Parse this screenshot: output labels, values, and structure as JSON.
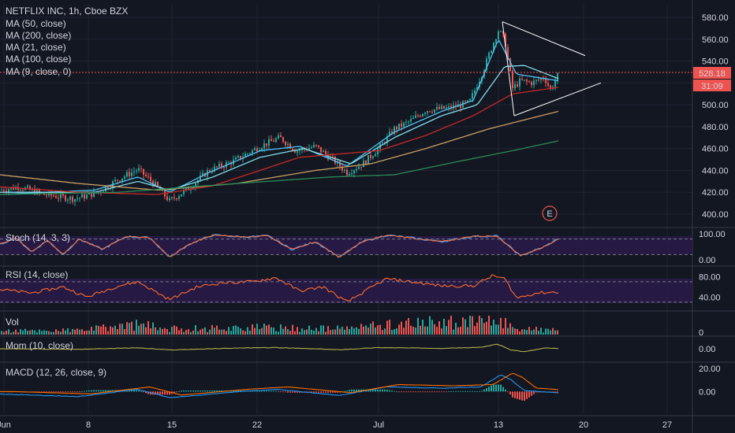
{
  "header": {
    "symbol_line": "NETFLIX INC, 1h, Cboe BZX",
    "indicators": [
      "MA (50, close)",
      "MA (200, close)",
      "MA (21, close)",
      "MA (100, close)",
      "MA (9, close, 0)"
    ]
  },
  "price_badges": {
    "last_price": "528.18",
    "countdown": "31:09"
  },
  "earnings_marker": "E",
  "colors": {
    "background": "#131722",
    "up": "#26a69a",
    "down": "#ef5350",
    "ma9": "#4fc3f7",
    "ma21": "#80deea",
    "ma50": "#c62828",
    "ma100": "#c8a064",
    "ma200": "#2e8b57",
    "badge": "#ef5350",
    "osc_fill": "#2a1a4a"
  },
  "chart_data": [
    {
      "type": "candlestick",
      "pane": "price",
      "ylim": [
        385,
        590
      ],
      "y_ticks": [
        "580.00",
        "560.00",
        "540.00",
        "520.00",
        "500.00",
        "480.00",
        "460.00",
        "440.00",
        "420.00",
        "400.00"
      ],
      "x_ticks": [
        "Jun",
        "8",
        "15",
        "22",
        "Jul",
        "13",
        "20",
        "27"
      ],
      "last_price": 528.18,
      "key_points": [
        {
          "x": 0,
          "close": 422
        },
        {
          "x": 25,
          "close": 425
        },
        {
          "x": 55,
          "close": 418
        },
        {
          "x": 95,
          "close": 414
        },
        {
          "x": 125,
          "close": 420
        },
        {
          "x": 150,
          "close": 432
        },
        {
          "x": 175,
          "close": 441
        },
        {
          "x": 195,
          "close": 428
        },
        {
          "x": 215,
          "close": 412
        },
        {
          "x": 240,
          "close": 424
        },
        {
          "x": 265,
          "close": 440
        },
        {
          "x": 295,
          "close": 448
        },
        {
          "x": 330,
          "close": 462
        },
        {
          "x": 355,
          "close": 470
        },
        {
          "x": 375,
          "close": 458
        },
        {
          "x": 400,
          "close": 462
        },
        {
          "x": 425,
          "close": 448
        },
        {
          "x": 440,
          "close": 438
        },
        {
          "x": 460,
          "close": 446
        },
        {
          "x": 480,
          "close": 460
        },
        {
          "x": 500,
          "close": 478
        },
        {
          "x": 520,
          "close": 485
        },
        {
          "x": 540,
          "close": 495
        },
        {
          "x": 570,
          "close": 497
        },
        {
          "x": 595,
          "close": 502
        },
        {
          "x": 612,
          "close": 530
        },
        {
          "x": 622,
          "close": 550
        },
        {
          "x": 632,
          "close": 568
        },
        {
          "x": 640,
          "close": 560
        },
        {
          "x": 650,
          "close": 515
        },
        {
          "x": 660,
          "close": 522
        },
        {
          "x": 675,
          "close": 520
        },
        {
          "x": 690,
          "close": 525
        },
        {
          "x": 698,
          "close": 514
        },
        {
          "x": 708,
          "close": 528
        }
      ],
      "moving_averages": [
        {
          "name": "MA (9, close, 0)",
          "key_points": [
            {
              "x": 0,
              "y": 418
            },
            {
              "x": 120,
              "y": 422
            },
            {
              "x": 175,
              "y": 434
            },
            {
              "x": 215,
              "y": 420
            },
            {
              "x": 265,
              "y": 438
            },
            {
              "x": 330,
              "y": 458
            },
            {
              "x": 380,
              "y": 462
            },
            {
              "x": 440,
              "y": 444
            },
            {
              "x": 500,
              "y": 475
            },
            {
              "x": 560,
              "y": 494
            },
            {
              "x": 600,
              "y": 504
            },
            {
              "x": 632,
              "y": 560
            },
            {
              "x": 655,
              "y": 528
            },
            {
              "x": 708,
              "y": 522
            }
          ]
        },
        {
          "name": "MA (21, close)",
          "key_points": [
            {
              "x": 0,
              "y": 420
            },
            {
              "x": 120,
              "y": 420
            },
            {
              "x": 175,
              "y": 430
            },
            {
              "x": 215,
              "y": 422
            },
            {
              "x": 270,
              "y": 434
            },
            {
              "x": 330,
              "y": 452
            },
            {
              "x": 385,
              "y": 460
            },
            {
              "x": 445,
              "y": 446
            },
            {
              "x": 500,
              "y": 470
            },
            {
              "x": 560,
              "y": 490
            },
            {
              "x": 605,
              "y": 500
            },
            {
              "x": 640,
              "y": 535
            },
            {
              "x": 665,
              "y": 536
            },
            {
              "x": 708,
              "y": 524
            }
          ]
        },
        {
          "name": "MA (50, close)",
          "key_points": [
            {
              "x": 0,
              "y": 425
            },
            {
              "x": 100,
              "y": 420
            },
            {
              "x": 200,
              "y": 418
            },
            {
              "x": 270,
              "y": 426
            },
            {
              "x": 330,
              "y": 440
            },
            {
              "x": 380,
              "y": 452
            },
            {
              "x": 430,
              "y": 455
            },
            {
              "x": 480,
              "y": 458
            },
            {
              "x": 540,
              "y": 472
            },
            {
              "x": 600,
              "y": 490
            },
            {
              "x": 650,
              "y": 510
            },
            {
              "x": 708,
              "y": 516
            }
          ]
        },
        {
          "name": "MA (100, close)",
          "key_points": [
            {
              "x": 0,
              "y": 436
            },
            {
              "x": 100,
              "y": 428
            },
            {
              "x": 200,
              "y": 422
            },
            {
              "x": 300,
              "y": 428
            },
            {
              "x": 400,
              "y": 440
            },
            {
              "x": 470,
              "y": 446
            },
            {
              "x": 540,
              "y": 460
            },
            {
              "x": 620,
              "y": 478
            },
            {
              "x": 708,
              "y": 494
            }
          ]
        },
        {
          "name": "MA (200, close)",
          "key_points": [
            {
              "x": 0,
              "y": 418
            },
            {
              "x": 150,
              "y": 420
            },
            {
              "x": 300,
              "y": 428
            },
            {
              "x": 420,
              "y": 434
            },
            {
              "x": 500,
              "y": 436
            },
            {
              "x": 580,
              "y": 448
            },
            {
              "x": 650,
              "y": 458
            },
            {
              "x": 708,
              "y": 467
            }
          ]
        }
      ],
      "trendlines": [
        {
          "from": [
            637,
            576
          ],
          "to": [
            652,
            490
          ]
        },
        {
          "from": [
            637,
            576
          ],
          "to": [
            742,
            545
          ]
        },
        {
          "from": [
            652,
            490
          ],
          "to": [
            762,
            520
          ]
        }
      ]
    },
    {
      "type": "line",
      "pane": "stoch",
      "title": "Stoch (14, 3, 3)",
      "ylim": [
        0,
        100
      ],
      "y_ticks": [
        "100.00",
        "0.00"
      ],
      "bands": [
        20,
        80
      ],
      "key_points": [
        {
          "x": 0,
          "y": 60
        },
        {
          "x": 20,
          "y": 85
        },
        {
          "x": 40,
          "y": 30
        },
        {
          "x": 60,
          "y": 75
        },
        {
          "x": 80,
          "y": 20
        },
        {
          "x": 100,
          "y": 80
        },
        {
          "x": 130,
          "y": 40
        },
        {
          "x": 160,
          "y": 90
        },
        {
          "x": 190,
          "y": 85
        },
        {
          "x": 215,
          "y": 10
        },
        {
          "x": 240,
          "y": 60
        },
        {
          "x": 270,
          "y": 95
        },
        {
          "x": 310,
          "y": 88
        },
        {
          "x": 340,
          "y": 92
        },
        {
          "x": 370,
          "y": 40
        },
        {
          "x": 400,
          "y": 70
        },
        {
          "x": 430,
          "y": 10
        },
        {
          "x": 460,
          "y": 70
        },
        {
          "x": 490,
          "y": 95
        },
        {
          "x": 520,
          "y": 85
        },
        {
          "x": 560,
          "y": 70
        },
        {
          "x": 600,
          "y": 90
        },
        {
          "x": 630,
          "y": 92
        },
        {
          "x": 660,
          "y": 15
        },
        {
          "x": 690,
          "y": 50
        },
        {
          "x": 710,
          "y": 85
        }
      ]
    },
    {
      "type": "line",
      "pane": "rsi",
      "title": "RSI (14, close)",
      "ylim": [
        25,
        90
      ],
      "y_ticks": [
        "80.00",
        "40.00"
      ],
      "bands": [
        30,
        70
      ],
      "key_points": [
        {
          "x": 0,
          "y": 55
        },
        {
          "x": 40,
          "y": 48
        },
        {
          "x": 80,
          "y": 60
        },
        {
          "x": 110,
          "y": 40
        },
        {
          "x": 150,
          "y": 62
        },
        {
          "x": 175,
          "y": 70
        },
        {
          "x": 215,
          "y": 35
        },
        {
          "x": 250,
          "y": 60
        },
        {
          "x": 280,
          "y": 68
        },
        {
          "x": 320,
          "y": 70
        },
        {
          "x": 350,
          "y": 78
        },
        {
          "x": 380,
          "y": 52
        },
        {
          "x": 410,
          "y": 60
        },
        {
          "x": 440,
          "y": 30
        },
        {
          "x": 470,
          "y": 58
        },
        {
          "x": 490,
          "y": 76
        },
        {
          "x": 520,
          "y": 70
        },
        {
          "x": 560,
          "y": 62
        },
        {
          "x": 600,
          "y": 62
        },
        {
          "x": 625,
          "y": 82
        },
        {
          "x": 640,
          "y": 76
        },
        {
          "x": 655,
          "y": 38
        },
        {
          "x": 680,
          "y": 48
        },
        {
          "x": 708,
          "y": 50
        }
      ]
    },
    {
      "type": "bar",
      "pane": "volume",
      "title": "Vol",
      "y_ticks": [
        "0"
      ],
      "key_points": [
        {
          "x": 0,
          "v": 0.25
        },
        {
          "x": 100,
          "v": 0.3
        },
        {
          "x": 175,
          "v": 0.7
        },
        {
          "x": 215,
          "v": 0.4
        },
        {
          "x": 320,
          "v": 0.5
        },
        {
          "x": 430,
          "v": 0.4
        },
        {
          "x": 490,
          "v": 0.7
        },
        {
          "x": 610,
          "v": 0.95
        },
        {
          "x": 635,
          "v": 0.9
        },
        {
          "x": 660,
          "v": 0.4
        },
        {
          "x": 708,
          "v": 0.3
        }
      ]
    },
    {
      "type": "line",
      "pane": "momentum",
      "title": "Mom (10, close)",
      "ylim": [
        -60,
        60
      ],
      "y_ticks": [
        "0.00"
      ],
      "key_points": [
        {
          "x": 0,
          "y": 0
        },
        {
          "x": 100,
          "y": -4
        },
        {
          "x": 175,
          "y": 8
        },
        {
          "x": 215,
          "y": -10
        },
        {
          "x": 300,
          "y": 6
        },
        {
          "x": 350,
          "y": 10
        },
        {
          "x": 430,
          "y": -8
        },
        {
          "x": 480,
          "y": 10
        },
        {
          "x": 560,
          "y": 4
        },
        {
          "x": 610,
          "y": 12
        },
        {
          "x": 630,
          "y": 40
        },
        {
          "x": 648,
          "y": -10
        },
        {
          "x": 665,
          "y": -25
        },
        {
          "x": 690,
          "y": 5
        },
        {
          "x": 708,
          "y": 2
        }
      ]
    },
    {
      "type": "line",
      "pane": "macd",
      "title": "MACD (12, 26, close, 9)",
      "ylim": [
        -12,
        22
      ],
      "y_ticks": [
        "20.00",
        "0.00"
      ],
      "key_points": [
        {
          "x": 0,
          "y": 0
        },
        {
          "x": 100,
          "y": -2
        },
        {
          "x": 175,
          "y": 4
        },
        {
          "x": 215,
          "y": -3
        },
        {
          "x": 300,
          "y": 2
        },
        {
          "x": 350,
          "y": 4
        },
        {
          "x": 430,
          "y": -1
        },
        {
          "x": 490,
          "y": 6
        },
        {
          "x": 560,
          "y": 5
        },
        {
          "x": 610,
          "y": 6
        },
        {
          "x": 635,
          "y": 16
        },
        {
          "x": 648,
          "y": 12
        },
        {
          "x": 665,
          "y": 3
        },
        {
          "x": 708,
          "y": 1
        }
      ]
    }
  ]
}
